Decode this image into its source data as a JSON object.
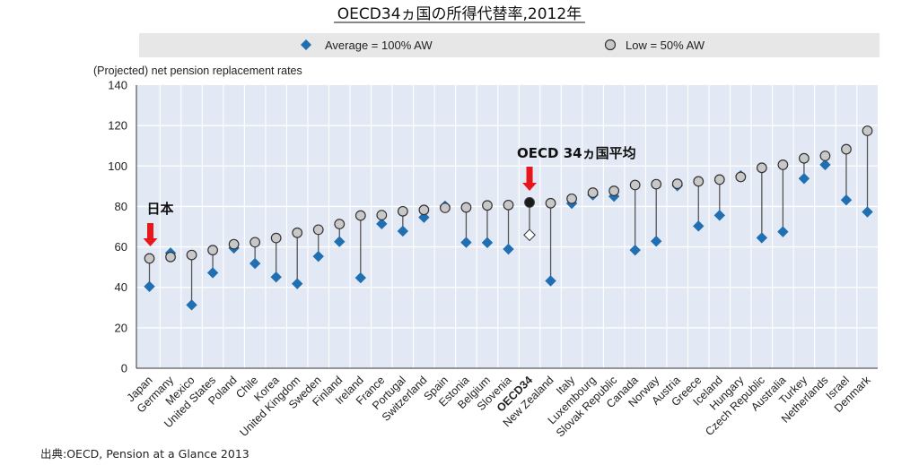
{
  "chart_data": {
    "type": "scatter",
    "title": "OECD34ヵ国の所得代替率,2012年",
    "ylabel": "(Projected) net pension replacement rates",
    "ylim": [
      0,
      140
    ],
    "yticks": [
      0,
      20,
      40,
      60,
      80,
      100,
      120,
      140
    ],
    "grid": true,
    "legend_position": "top",
    "legend": {
      "avg_label": "Average = 100% AW",
      "low_label": "Low = 50% AW"
    },
    "categories": [
      "Japan",
      "Germany",
      "Mexico",
      "United States",
      "Poland",
      "Chile",
      "Korea",
      "United Kingdom",
      "Sweden",
      "Finland",
      "Ireland",
      "France",
      "Portugal",
      "Switzerland",
      "Spain",
      "Estonia",
      "Belgium",
      "Slovenia",
      "OECD34",
      "New Zealand",
      "Italy",
      "Luxembourg",
      "Slovak Republic",
      "Canada",
      "Norway",
      "Austria",
      "Greece",
      "Iceland",
      "Hungary",
      "Czech Republic",
      "Australia",
      "Turkey",
      "Netherlands",
      "Israel",
      "Denmark"
    ],
    "series": [
      {
        "name": "Average = 100% AW",
        "marker": "diamond",
        "values": [
          40.4,
          57.0,
          31.3,
          47.2,
          59.4,
          51.8,
          45.1,
          41.8,
          55.3,
          62.6,
          44.7,
          71.4,
          67.8,
          74.6,
          80.2,
          62.2,
          62.1,
          58.9,
          65.9,
          43.2,
          81.5,
          85.7,
          85.0,
          58.4,
          62.8,
          90.2,
          70.3,
          75.6,
          95.2,
          64.5,
          67.5,
          93.8,
          100.6,
          83.2,
          77.3
        ]
      },
      {
        "name": "Low = 50% AW",
        "marker": "circle",
        "values": [
          54.3,
          55.0,
          56.0,
          58.4,
          61.3,
          62.3,
          64.4,
          67.0,
          68.5,
          71.3,
          75.5,
          75.7,
          77.6,
          78.3,
          79.3,
          79.5,
          80.5,
          80.7,
          82.0,
          81.6,
          83.8,
          86.8,
          87.7,
          90.6,
          91.0,
          91.2,
          92.4,
          93.3,
          94.6,
          99.1,
          100.6,
          103.8,
          105.0,
          108.3,
          117.4
        ]
      }
    ],
    "annotations": [
      {
        "text": "日本",
        "category": "Japan"
      },
      {
        "text": "OECD 34ヵ国平均",
        "category": "OECD34"
      }
    ],
    "highlight_category": "OECD34"
  },
  "source": "出典:OECD, Pension at a Glance 2013",
  "colors": {
    "plot_bg": "#e3e9f4",
    "legend_bg": "#e7e7e7",
    "diamond": "#1f6fb2",
    "circle_fill": "#c8c8c8",
    "stem": "#555555",
    "arrow": "#e8161b"
  }
}
